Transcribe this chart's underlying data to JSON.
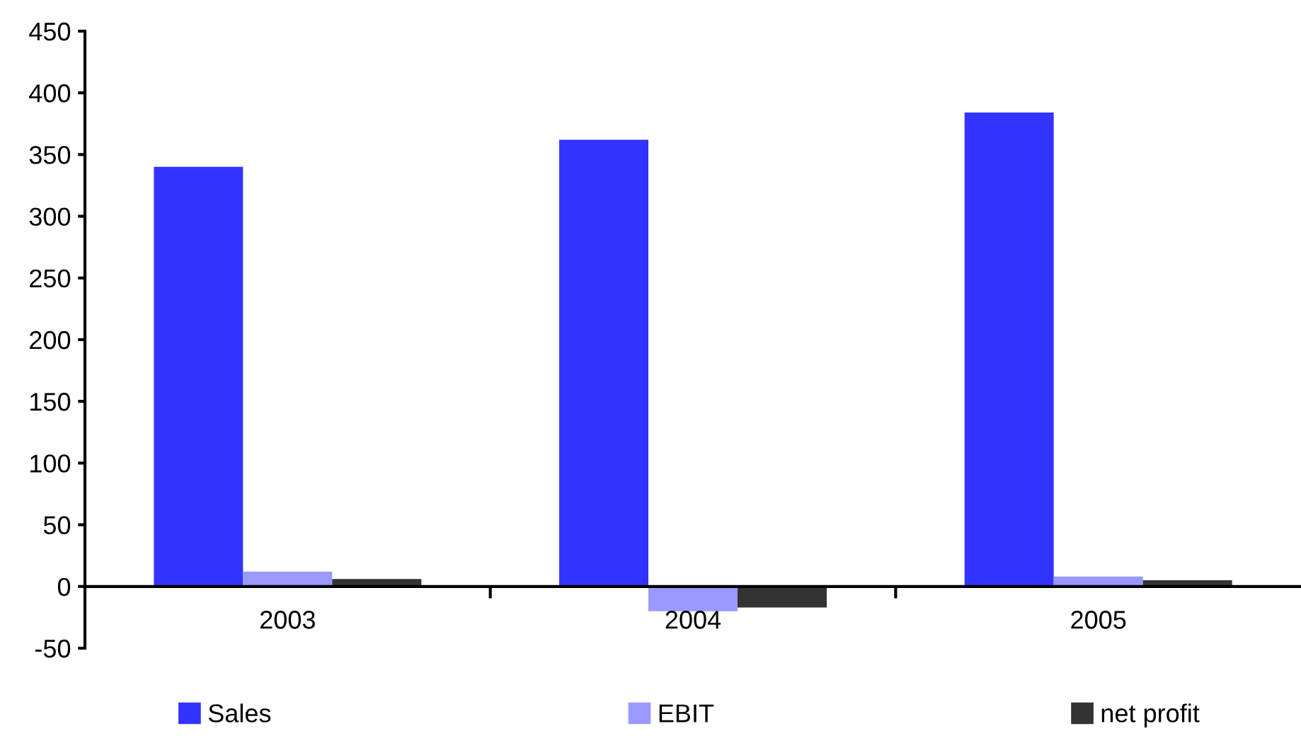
{
  "chart_data": {
    "type": "bar",
    "categories": [
      "2003",
      "2004",
      "2005"
    ],
    "series": [
      {
        "name": "Sales",
        "color": "#3333ff",
        "values": [
          340,
          362,
          384
        ]
      },
      {
        "name": "EBIT",
        "color": "#9999ff",
        "values": [
          12,
          -20,
          8
        ]
      },
      {
        "name": "net profit",
        "color": "#333333",
        "values": [
          6,
          -17,
          5
        ]
      }
    ],
    "ylim": [
      -50,
      450
    ],
    "yticks": [
      -50,
      0,
      50,
      100,
      150,
      200,
      250,
      300,
      350,
      400,
      450
    ],
    "grid": false,
    "legend": "bottom"
  }
}
